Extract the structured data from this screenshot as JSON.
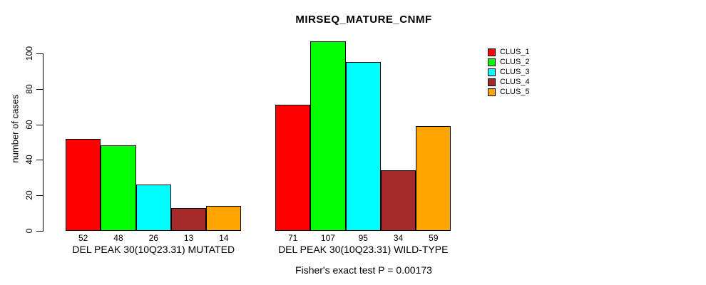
{
  "chart_data": {
    "type": "bar",
    "title": "MIRSEQ_MATURE_CNMF",
    "xlabel": "",
    "ylabel": "number of cases",
    "ylim": [
      0,
      107
    ],
    "yticks": [
      0,
      20,
      40,
      60,
      80,
      100
    ],
    "grid": false,
    "legend_position": "right",
    "categories": [
      "DEL PEAK 30(10Q23.31) MUTATED",
      "DEL PEAK 30(10Q23.31) WILD-TYPE"
    ],
    "series": [
      {
        "name": "CLUS_1",
        "color": "#FF0000",
        "values": [
          52,
          71
        ]
      },
      {
        "name": "CLUS_2",
        "color": "#00FF00",
        "values": [
          48,
          107
        ]
      },
      {
        "name": "CLUS_3",
        "color": "#00FFFF",
        "values": [
          26,
          95
        ]
      },
      {
        "name": "CLUS_4",
        "color": "#A52A2A",
        "values": [
          13,
          34
        ]
      },
      {
        "name": "CLUS_5",
        "color": "#FFA500",
        "values": [
          14,
          59
        ]
      }
    ],
    "bar_value_labels_shown": true,
    "annotation": "Fisher's exact test P = 0.00173"
  }
}
